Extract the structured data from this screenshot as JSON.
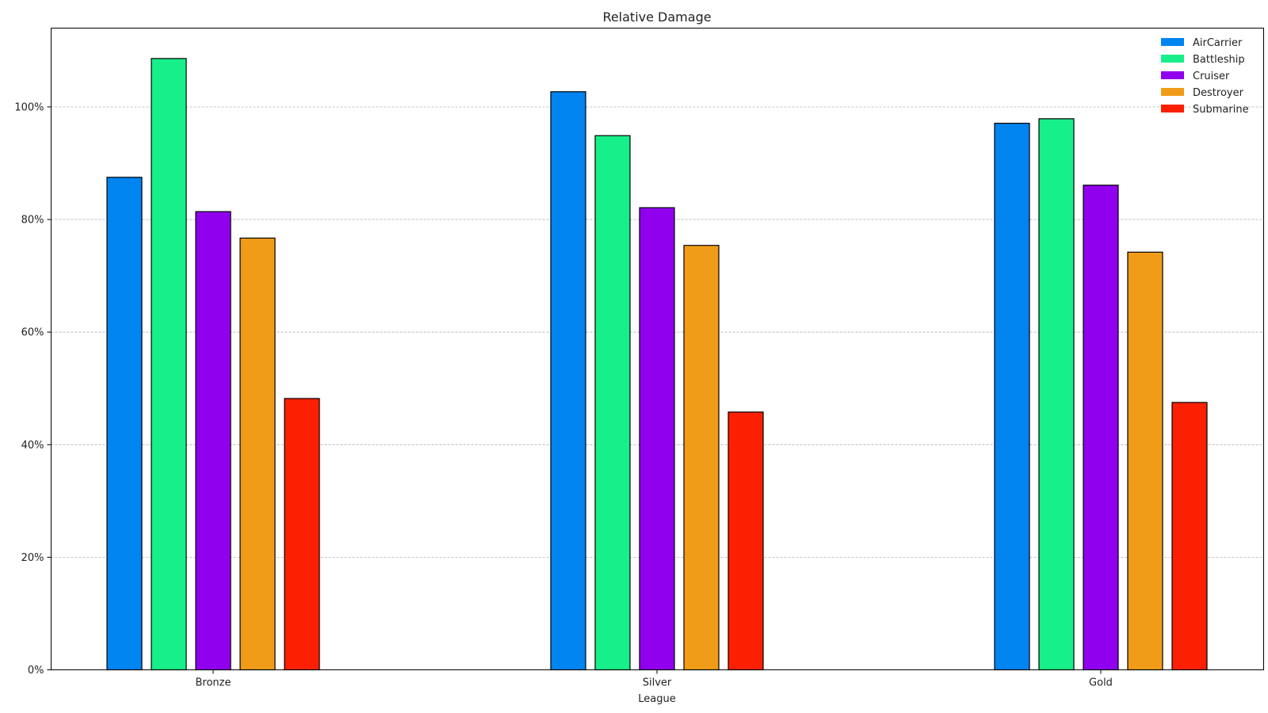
{
  "chart_data": {
    "type": "bar",
    "title": "Relative Damage",
    "xlabel": "League",
    "ylabel": "",
    "categories": [
      "Bronze",
      "Silver",
      "Gold"
    ],
    "ylim": [
      0,
      1.14
    ],
    "yticks": [
      0,
      0.2,
      0.4,
      0.6,
      0.8,
      1.0
    ],
    "ytick_labels": [
      "0%",
      "20%",
      "40%",
      "60%",
      "80%",
      "100%"
    ],
    "grid": true,
    "legend_position": "top-right",
    "series": [
      {
        "name": "AirCarrier",
        "color": "#0084f0",
        "values": [
          0.875,
          1.027,
          0.971
        ]
      },
      {
        "name": "Battleship",
        "color": "#17ef8a",
        "values": [
          1.086,
          0.949,
          0.979
        ]
      },
      {
        "name": "Cruiser",
        "color": "#9000ef",
        "values": [
          0.814,
          0.821,
          0.861
        ]
      },
      {
        "name": "Destroyer",
        "color": "#f19c19",
        "values": [
          0.767,
          0.754,
          0.742
        ]
      },
      {
        "name": "Submarine",
        "color": "#fc2002",
        "values": [
          0.482,
          0.458,
          0.475
        ]
      }
    ]
  }
}
